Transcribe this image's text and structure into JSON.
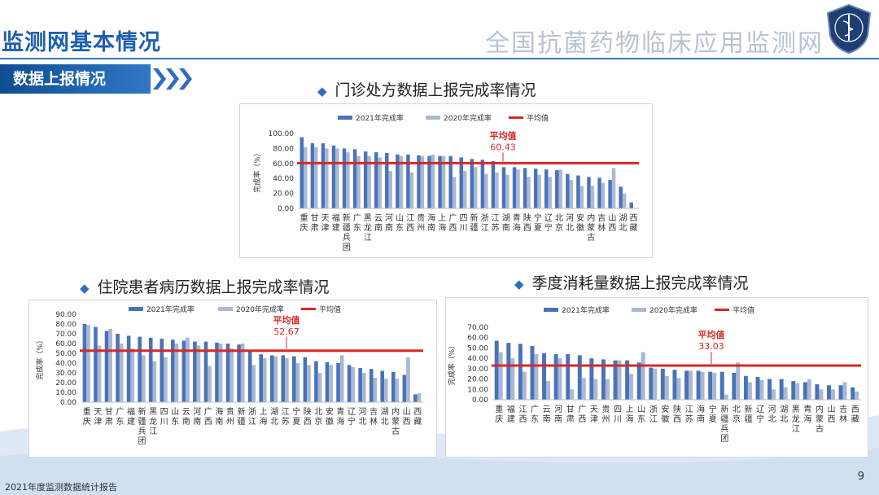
{
  "header": {
    "left_title": "监测网基本情况",
    "right_title": "全国抗菌药物临床应用监测网"
  },
  "section": {
    "tab_label": "数据上报情况"
  },
  "footer": {
    "report_name": "2021年度监测数据统计报告",
    "page_number": "9"
  },
  "colors": {
    "y2021": "#4a72b8",
    "y2020": "#a9b8d4",
    "avg": "#d62828",
    "accent": "#1f5fb0"
  },
  "chart_data": [
    {
      "type": "bar",
      "title": "门诊处方数据上报完成率情况",
      "ylabel": "完成率（%）",
      "ylim": [
        0,
        100
      ],
      "yticks": [
        "0.00",
        "20.00",
        "40.00",
        "60.00",
        "80.00",
        "100.00"
      ],
      "legend": [
        "2021年完成率",
        "2020年完成率",
        "平均值"
      ],
      "avg_label": "平均值",
      "avg_value": 60.43,
      "avg_text": "60.43",
      "categories": [
        "重庆",
        "甘肃",
        "天津",
        "福建",
        "新疆兵团",
        "广东",
        "黑龙江",
        "云南",
        "河南",
        "山东",
        "江西",
        "贵州",
        "海南",
        "上海",
        "广西",
        "四川",
        "新疆",
        "浙江",
        "江苏",
        "湖南",
        "青海",
        "陕西",
        "宁夏",
        "辽宁",
        "北京",
        "河北",
        "安徽",
        "内蒙古",
        "吉林",
        "山西",
        "湖北",
        "西藏"
      ],
      "series": [
        {
          "name": "2021年完成率",
          "values": [
            95,
            87,
            87,
            84,
            80,
            79,
            76,
            75,
            74,
            72,
            72,
            71,
            70,
            70,
            70,
            68,
            66,
            65,
            63,
            55,
            55,
            54,
            53,
            52,
            51,
            46,
            44,
            42,
            41,
            38,
            29,
            8
          ]
        },
        {
          "name": "2020年完成率",
          "values": [
            82,
            82,
            80,
            80,
            75,
            70,
            70,
            68,
            50,
            70,
            48,
            70,
            72,
            70,
            42,
            50,
            55,
            46,
            48,
            45,
            52,
            42,
            45,
            42,
            52,
            38,
            30,
            30,
            34,
            54,
            20,
            0
          ]
        }
      ]
    },
    {
      "type": "bar",
      "title": "住院患者病历数据上报完成率情况",
      "ylabel": "完成率（%）",
      "ylim": [
        0,
        90
      ],
      "yticks": [
        "0.00",
        "10.00",
        "20.00",
        "30.00",
        "40.00",
        "50.00",
        "60.00",
        "70.00",
        "80.00",
        "90.00"
      ],
      "legend": [
        "2021年完成率",
        "2020年完成率",
        "平均值"
      ],
      "avg_label": "平均值",
      "avg_value": 52.67,
      "avg_text": "52.67",
      "categories": [
        "重庆",
        "天津",
        "甘肃",
        "广东",
        "福建",
        "新疆兵团",
        "黑龙江",
        "四川",
        "山东",
        "云南",
        "河南",
        "广西",
        "海南",
        "贵州",
        "新疆",
        "浙江",
        "上海",
        "湖北",
        "江苏",
        "宁夏",
        "陕西",
        "北京",
        "安徽",
        "青海",
        "辽宁",
        "河北",
        "吉林",
        "湖北",
        "内蒙古",
        "山西",
        "西藏"
      ],
      "series": [
        {
          "name": "2021年完成率",
          "values": [
            80,
            77,
            73,
            70,
            68,
            67,
            66,
            65,
            64,
            63,
            62,
            62,
            61,
            60,
            59,
            53,
            49,
            48,
            48,
            47,
            46,
            42,
            41,
            40,
            38,
            35,
            34,
            32,
            31,
            28,
            8
          ]
        },
        {
          "name": "2020年完成率",
          "values": [
            79,
            58,
            75,
            60,
            55,
            48,
            42,
            46,
            60,
            66,
            58,
            37,
            60,
            55,
            60,
            38,
            45,
            47,
            45,
            40,
            38,
            30,
            38,
            48,
            36,
            30,
            25,
            24,
            24,
            46,
            9
          ]
        }
      ]
    },
    {
      "type": "bar",
      "title": "季度消耗量数据上报完成率情况",
      "ylabel": "完成率（%）",
      "ylim": [
        0,
        70
      ],
      "yticks": [
        "0.00",
        "10.00",
        "20.00",
        "30.00",
        "40.00",
        "50.00",
        "60.00",
        "70.00"
      ],
      "legend": [
        "2021年完成率",
        "2020年完成率",
        "平均值"
      ],
      "avg_label": "平均值",
      "avg_value": 33.03,
      "avg_text": "33.03",
      "categories": [
        "重庆",
        "福建",
        "江西",
        "广东",
        "云南",
        "河南",
        "甘肃",
        "广西",
        "天津",
        "贵州",
        "四川",
        "上海",
        "山东",
        "浙江",
        "安徽",
        "陕西",
        "江苏",
        "海南",
        "宁夏",
        "新疆兵团",
        "北京",
        "新疆",
        "辽宁",
        "河北",
        "湖北",
        "黑龙江",
        "青海",
        "内蒙古",
        "山西",
        "吉林",
        "西藏"
      ],
      "series": [
        {
          "name": "2021年完成率",
          "values": [
            57,
            55,
            54,
            52,
            45,
            44,
            44,
            43,
            40,
            39,
            38,
            38,
            36,
            31,
            30,
            29,
            28,
            28,
            27,
            27,
            26,
            23,
            22,
            20,
            20,
            18,
            17,
            15,
            14,
            14,
            12
          ]
        },
        {
          "name": "2020年完成率",
          "values": [
            46,
            40,
            27,
            44,
            18,
            40,
            10,
            21,
            20,
            20,
            38,
            25,
            46,
            30,
            23,
            21,
            28,
            27,
            26,
            5,
            36,
            17,
            19,
            10,
            12,
            16,
            20,
            10,
            10,
            17,
            8
          ]
        }
      ]
    }
  ]
}
